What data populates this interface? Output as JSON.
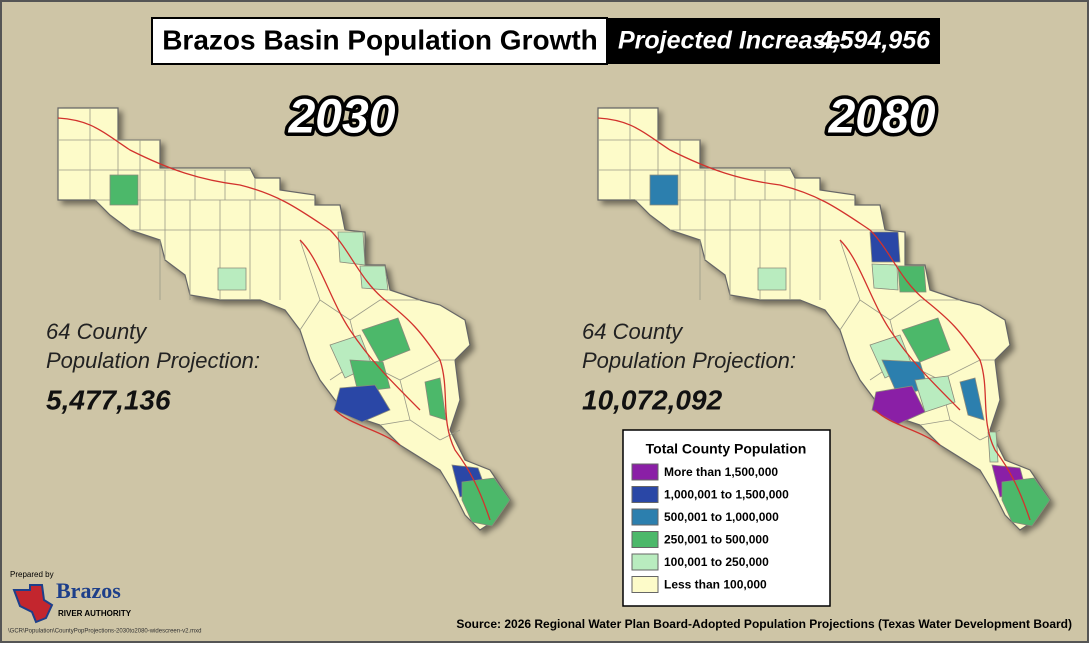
{
  "header": {
    "title": "Brazos Basin Population Growth",
    "increase_label": "Projected Increase:",
    "increase_value": "4,594,956"
  },
  "panels": [
    {
      "year": "2030",
      "label_line1": "64 County",
      "label_line2": "Population Projection:",
      "total": "5,477,136"
    },
    {
      "year": "2080",
      "label_line1": "64 County",
      "label_line2": "Population Projection:",
      "total": "10,072,092"
    }
  ],
  "legend": {
    "title": "Total County Population",
    "items": [
      {
        "label": "More than 1,500,000",
        "color": "#8a1fa6"
      },
      {
        "label": "1,000,001 to 1,500,000",
        "color": "#2a47a6"
      },
      {
        "label": "500,001 to 1,000,000",
        "color": "#2c7fae"
      },
      {
        "label": "250,001 to 500,000",
        "color": "#4cb86a"
      },
      {
        "label": "100,001 to 250,000",
        "color": "#b9ecbf"
      },
      {
        "label": "Less than 100,000",
        "color": "#fdfbc9"
      }
    ]
  },
  "footer": {
    "prepared_by": "Prepared by",
    "org_name": "Brazos",
    "org_sub": "RIVER AUTHORITY",
    "file_path": "\\GCR\\Population\\CountyPopProjections-2030to2080-widescreen-v2.mxd",
    "source": "Source:  2026 Regional Water Plan Board-Adopted Population Projections (Texas Water Development Board)"
  }
}
